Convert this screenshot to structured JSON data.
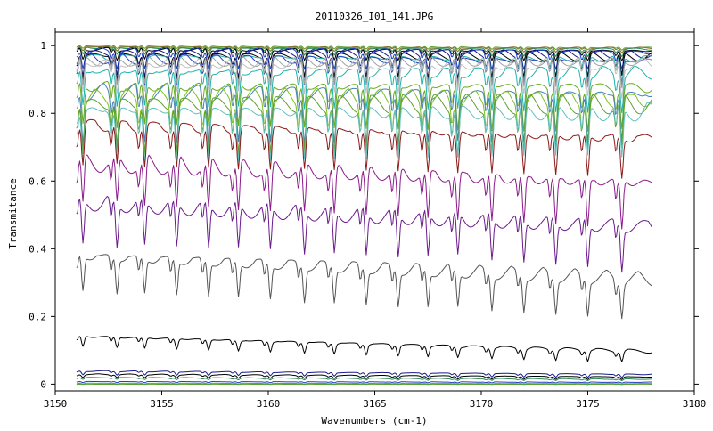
{
  "chart_data": {
    "type": "line",
    "title": "20110326_I01_141.JPG",
    "xlabel": "Wavenumbers (cm-1)",
    "ylabel": "Transmitance",
    "xlim": [
      3150,
      3180
    ],
    "ylim": [
      -0.02,
      1.04
    ],
    "grid": false,
    "x_ticks": [
      3150,
      3155,
      3160,
      3165,
      3170,
      3175,
      3180
    ],
    "x_tick_labels": [
      "3150",
      "3155",
      "3160",
      "3165",
      "3170",
      "3175",
      "3180"
    ],
    "y_ticks": [
      0,
      0.2,
      0.4,
      0.6,
      0.8,
      1
    ],
    "y_tick_labels": [
      "0",
      "0.2",
      "0.4",
      "0.6",
      "0.8",
      "1"
    ],
    "x_range_data": [
      3151,
      3178
    ],
    "dip_centers": [
      3151.3,
      3152.9,
      3154.2,
      3155.7,
      3157.2,
      3158.6,
      3160.1,
      3161.7,
      3163.1,
      3164.6,
      3166.1,
      3167.5,
      3168.9,
      3170.5,
      3172.0,
      3173.5,
      3175.0,
      3176.6
    ],
    "series": [
      {
        "color": "#5aa02c",
        "baseline": 1.0,
        "end": 0.995,
        "dip": 0.008
      },
      {
        "color": "#8b6d2a",
        "baseline": 0.998,
        "end": 0.994,
        "dip": 0.012
      },
      {
        "color": "#2e8b57",
        "baseline": 0.996,
        "end": 0.992,
        "dip": 0.02
      },
      {
        "color": "#000000",
        "baseline": 0.993,
        "end": 0.988,
        "dip": 0.03
      },
      {
        "color": "#1f3fbf",
        "baseline": 0.99,
        "end": 0.985,
        "dip": 0.045
      },
      {
        "color": "#1a1a8c",
        "baseline": 0.985,
        "end": 0.98,
        "dip": 0.06
      },
      {
        "color": "#000000",
        "baseline": 0.98,
        "end": 0.975,
        "dip": 0.07
      },
      {
        "color": "#20b2aa",
        "baseline": 0.975,
        "end": 0.97,
        "dip": 0.075
      },
      {
        "color": "#1f3fbf",
        "baseline": 0.97,
        "end": 0.965,
        "dip": 0.08
      },
      {
        "color": "#a0a0a0",
        "baseline": 0.965,
        "end": 0.962,
        "dip": 0.085
      },
      {
        "color": "#c0c0c0",
        "baseline": 0.96,
        "end": 0.955,
        "dip": 0.09
      },
      {
        "color": "#20b2aa",
        "baseline": 0.935,
        "end": 0.93,
        "dip": 0.1
      },
      {
        "color": "#66aa22",
        "baseline": 0.895,
        "end": 0.89,
        "dip": 0.12
      },
      {
        "color": "#4682b4",
        "baseline": 0.875,
        "end": 0.87,
        "dip": 0.13
      },
      {
        "color": "#7cbf1f",
        "baseline": 0.86,
        "end": 0.855,
        "dip": 0.14
      },
      {
        "color": "#5f9f30",
        "baseline": 0.845,
        "end": 0.84,
        "dip": 0.14
      },
      {
        "color": "#5fc0c0",
        "baseline": 0.825,
        "end": 0.82,
        "dip": 0.15
      },
      {
        "color": "#8b1a1a",
        "baseline": 0.78,
        "end": 0.74,
        "dip": 0.12
      },
      {
        "color": "#8b1a8b",
        "baseline": 0.67,
        "end": 0.61,
        "dip": 0.14
      },
      {
        "color": "#6a1a8b",
        "baseline": 0.55,
        "end": 0.48,
        "dip": 0.13
      },
      {
        "color": "#555555",
        "baseline": 0.39,
        "end": 0.32,
        "dip": 0.1
      },
      {
        "color": "#000000",
        "baseline": 0.145,
        "end": 0.1,
        "dip": 0.03
      },
      {
        "color": "#1a1a8c",
        "baseline": 0.04,
        "end": 0.03,
        "dip": 0.01
      },
      {
        "color": "#000000",
        "baseline": 0.03,
        "end": 0.022,
        "dip": 0.008
      },
      {
        "color": "#2e8b57",
        "baseline": 0.02,
        "end": 0.015,
        "dip": 0.005
      },
      {
        "color": "#1f3fbf",
        "baseline": 0.008,
        "end": 0.006,
        "dip": 0.003
      },
      {
        "color": "#20b2aa",
        "baseline": 0.003,
        "end": 0.002,
        "dip": 0.002
      },
      {
        "color": "#5aa02c",
        "baseline": 0.0,
        "end": 0.0,
        "dip": 0.001
      }
    ]
  }
}
